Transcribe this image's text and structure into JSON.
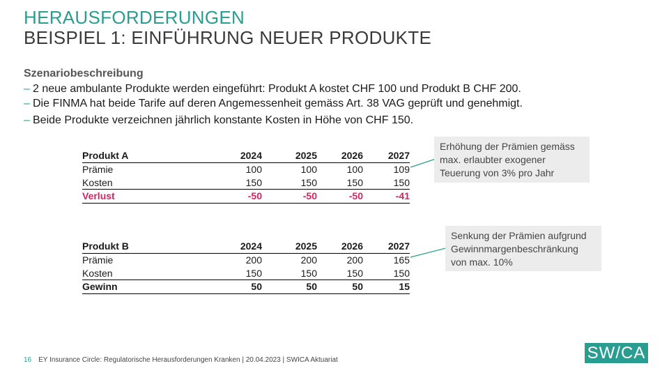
{
  "header": {
    "title": "HERAUSFORDERUNGEN",
    "subtitle": "BEISPIEL 1: EINFÜHRUNG NEUER PRODUKTE"
  },
  "scenario": {
    "heading": "Szenariobeschreibung",
    "bullet_char": "–",
    "bullets": [
      "2 neue ambulante Produkte werden eingeführt: Produkt A kostet CHF 100 und Produkt B CHF 200.",
      "Die FINMA hat beide Tarife auf deren Angemessenheit gemäss Art. 38 VAG geprüft und genehmigt.",
      "Beide Produkte verzeichnen jährlich konstante Kosten in Höhe von CHF 150."
    ]
  },
  "table_a": {
    "header": [
      "Produkt A",
      "2024",
      "2025",
      "2026",
      "2027"
    ],
    "rows": [
      [
        "Prämie",
        "100",
        "100",
        "100",
        "109"
      ],
      [
        "Kosten",
        "150",
        "150",
        "150",
        "150"
      ],
      [
        "Verlust",
        "-50",
        "-50",
        "-50",
        "-41"
      ]
    ],
    "loss_color": "#d6245e"
  },
  "table_b": {
    "header": [
      "Produkt B",
      "2024",
      "2025",
      "2026",
      "2027"
    ],
    "rows": [
      [
        "Prämie",
        "200",
        "200",
        "200",
        "165"
      ],
      [
        "Kosten",
        "150",
        "150",
        "150",
        "150"
      ],
      [
        "Gewinn",
        "50",
        "50",
        "50",
        "15"
      ]
    ]
  },
  "notes": {
    "a": [
      "Erhöhung der Prämien gemäss",
      "max. erlaubter exogener",
      "Teuerung von 3% pro Jahr"
    ],
    "b": [
      "Senkung der Prämien aufgrund",
      "Gewinnmargenbeschränkung",
      "von max. 10%"
    ]
  },
  "footer": {
    "page": "16",
    "text": "EY Insurance Circle: Regulatorische Herausforderungen Kranken | 20.04.2023 | SWICA Aktuariat"
  },
  "logo": {
    "text": "SW/CA"
  },
  "colors": {
    "accent": "#2a9d91",
    "loss": "#d6245e",
    "note_bg": "#ececec"
  }
}
